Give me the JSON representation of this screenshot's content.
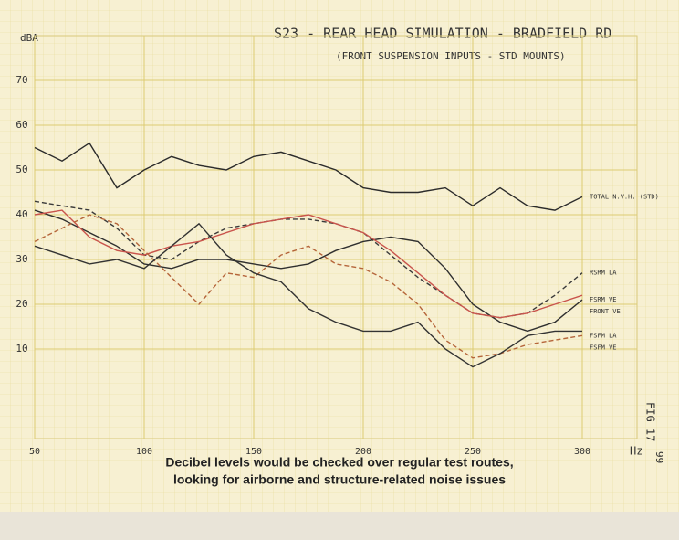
{
  "chart_data": {
    "type": "line",
    "title": "S23 - REAR HEAD SIMULATION - BRADFIELD RD",
    "subtitle": "(FRONT SUSPENSION INPUTS - STD MOUNTS)",
    "y_label": "dBA",
    "x_label": "Hz",
    "x": [
      50,
      62.5,
      75,
      87.5,
      100,
      112.5,
      125,
      137.5,
      150,
      162.5,
      175,
      187.5,
      200,
      212.5,
      225,
      237.5,
      250,
      262.5,
      275,
      287.5,
      300
    ],
    "xlim": [
      50,
      325
    ],
    "xticks": [
      50,
      100,
      150,
      200,
      250,
      300
    ],
    "ylim": [
      -10,
      80
    ],
    "yticks": [
      10,
      20,
      30,
      40,
      50,
      60,
      70
    ],
    "grid": true,
    "series": [
      {
        "name": "TOTAL N.V.H. (STD)",
        "color": "#2b2b2b",
        "style": "solid",
        "values": [
          55,
          52,
          56,
          46,
          50,
          53,
          51,
          50,
          53,
          54,
          52,
          50,
          46,
          45,
          45,
          46,
          42,
          46,
          42,
          41,
          44
        ]
      },
      {
        "name": "RSRM LA",
        "color": "#3a3a3a",
        "style": "dashed",
        "values": [
          43,
          42,
          41,
          37,
          31,
          30,
          34,
          37,
          38,
          39,
          39,
          38,
          36,
          31,
          26,
          22,
          18,
          17,
          18,
          22,
          27
        ]
      },
      {
        "name": "FSRM VE",
        "color": "#2f2f2f",
        "style": "solid",
        "values": [
          41,
          39,
          36,
          33,
          29,
          28,
          30,
          30,
          29,
          28,
          29,
          32,
          34,
          35,
          34,
          28,
          20,
          16,
          14,
          16,
          21
        ]
      },
      {
        "name": "FRONT VE",
        "color": "#c9544c",
        "style": "solid",
        "values": [
          40,
          41,
          35,
          32,
          31,
          33,
          34,
          36,
          38,
          39,
          40,
          38,
          36,
          32,
          27,
          22,
          18,
          17,
          18,
          20,
          22
        ]
      },
      {
        "name": "FSFM LA",
        "color": "#b5653a",
        "style": "dashed",
        "values": [
          34,
          37,
          40,
          38,
          32,
          26,
          20,
          27,
          26,
          31,
          33,
          29,
          28,
          25,
          20,
          12,
          8,
          9,
          11,
          12,
          13
        ]
      },
      {
        "name": "FSFM VE",
        "color": "#333333",
        "style": "solid",
        "values": [
          33,
          31,
          29,
          30,
          28,
          33,
          38,
          31,
          27,
          25,
          19,
          16,
          14,
          14,
          16,
          10,
          6,
          9,
          13,
          14,
          14
        ]
      }
    ],
    "annotations": [
      "FIG 17",
      "99"
    ],
    "caption": [
      "Decibel levels would be checked over regular test routes,",
      "looking for airborne and structure-related noise issues"
    ]
  }
}
